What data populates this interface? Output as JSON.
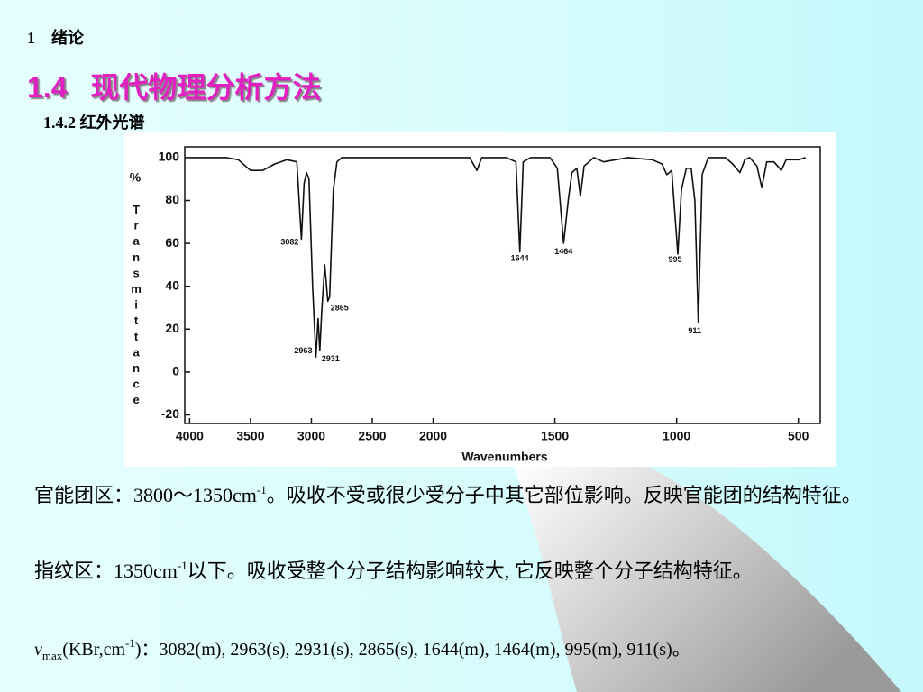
{
  "header": {
    "chapter_number": "1",
    "chapter": "绪论",
    "section_number": "1.4",
    "section": "现代物理分析方法",
    "subsection": "1.4.2 红外光谱"
  },
  "chart_data": {
    "type": "line",
    "x_label": "Wavenumbers",
    "y_unit": "%",
    "y_label": "Transmittance",
    "xlim": [
      4040,
      410
    ],
    "xscale": {
      "break": 2000,
      "factor": 2
    },
    "xticks": [
      4000,
      3500,
      3000,
      2500,
      2000,
      1500,
      1000,
      500
    ],
    "ylim": [
      -24,
      105
    ],
    "yticks": [
      -20,
      0,
      20,
      40,
      60,
      80,
      100
    ],
    "series": [
      {
        "color": "#111111",
        "x": [
          4000,
          3700,
          3600,
          3500,
          3400,
          3300,
          3200,
          3120,
          3082,
          3060,
          3040,
          3020,
          2990,
          2963,
          2945,
          2931,
          2915,
          2890,
          2865,
          2850,
          2820,
          2790,
          2750,
          2000,
          1850,
          1820,
          1800,
          1700,
          1660,
          1644,
          1630,
          1600,
          1520,
          1490,
          1464,
          1445,
          1430,
          1410,
          1395,
          1380,
          1360,
          1340,
          1300,
          1250,
          1200,
          1100,
          1060,
          1040,
          1020,
          995,
          980,
          960,
          940,
          925,
          911,
          895,
          870,
          800,
          770,
          740,
          720,
          700,
          670,
          650,
          630,
          600,
          570,
          550,
          500,
          470
        ],
        "values": [
          100,
          100,
          99,
          94,
          94,
          97,
          99,
          98,
          62,
          88,
          93,
          90,
          40,
          7,
          25,
          10,
          28,
          50,
          33,
          35,
          85,
          98,
          100,
          100,
          100,
          94,
          100,
          100,
          98,
          56,
          98,
          100,
          100,
          95,
          60,
          80,
          93,
          95,
          82,
          96,
          98,
          100,
          98,
          99,
          100,
          99,
          97,
          92,
          94,
          55,
          85,
          95,
          95,
          80,
          23,
          92,
          100,
          100,
          97,
          93,
          99,
          100,
          96,
          86,
          98,
          98,
          94,
          99,
          99,
          100
        ]
      }
    ],
    "peaks": [
      3082,
      2865,
      2963,
      2931,
      1644,
      1464,
      995,
      911
    ]
  },
  "text": {
    "p1": [
      "官能团区：3800～1350cm",
      "-1",
      "。吸收不受或很少受分子中其它部位影响。反映官能团的结构特征。"
    ],
    "p2": [
      "指纹区：1350cm",
      "-1",
      "以下。吸收受整个分子结构影响较大, 它反映整个分子结构特征。"
    ],
    "p3": [
      "v",
      "max",
      "(KBr,cm",
      "-1",
      ")：3082(m), 2963(s), 2931(s), 2865(s), 1644(m), 1464(m), 995(m), 911(s)。"
    ]
  }
}
